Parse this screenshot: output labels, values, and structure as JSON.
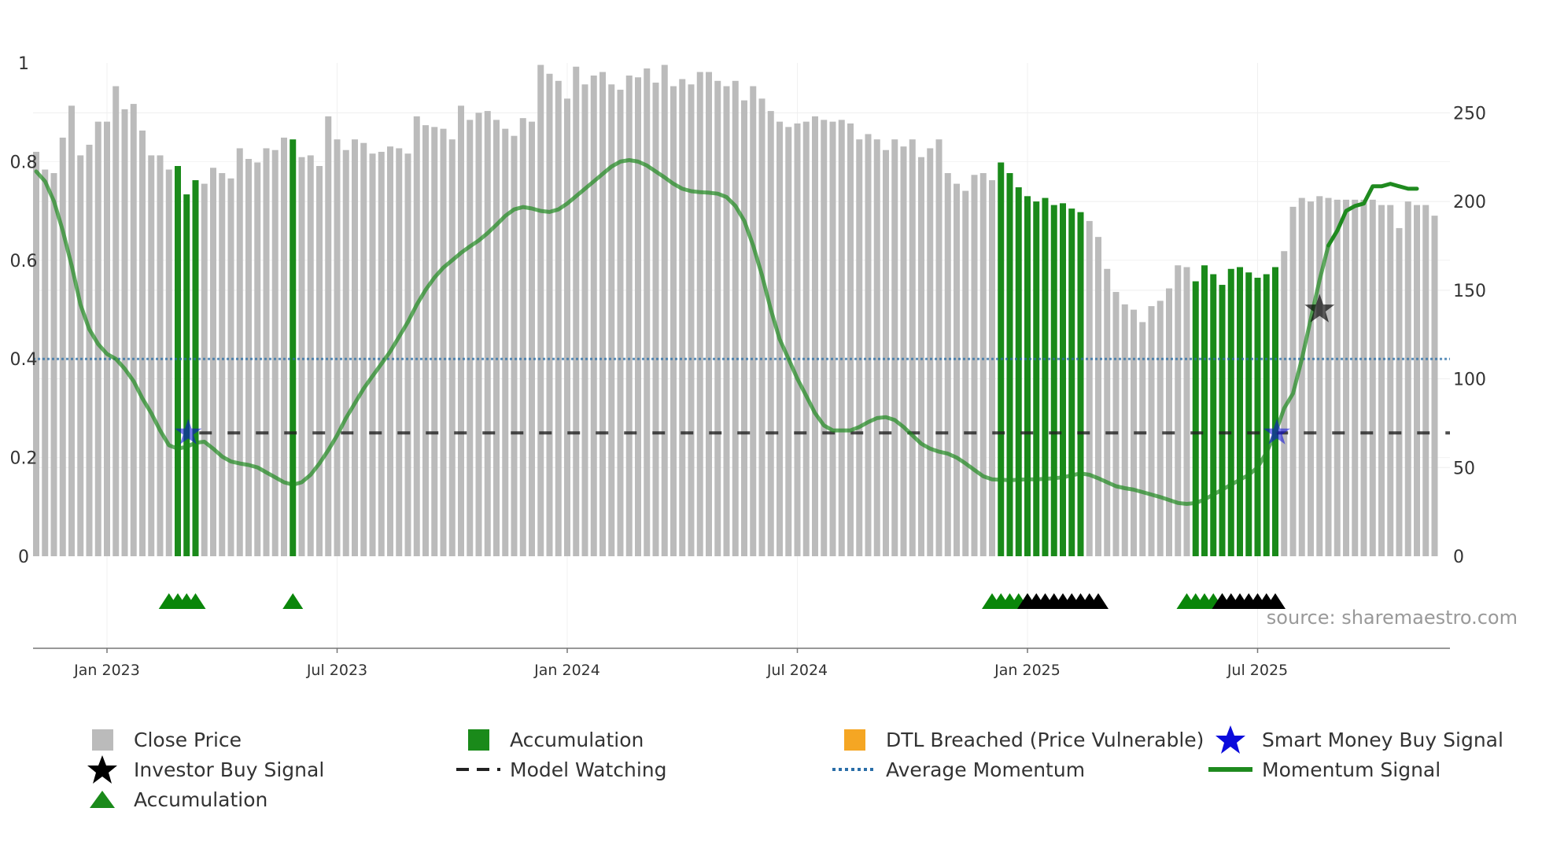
{
  "chart_data": {
    "type": "bar",
    "title": "",
    "source_note": "source: sharemaestro.com",
    "left_axis": {
      "range": [
        0,
        1
      ],
      "ticks": [
        "0",
        "0.2",
        "0.4",
        "0.6",
        "0.8",
        "1"
      ],
      "tick_values": [
        0,
        0.2,
        0.4,
        0.6,
        0.8,
        1
      ]
    },
    "right_axis": {
      "range": [
        0,
        275
      ],
      "ticks": [
        "0",
        "50",
        "100",
        "150",
        "200",
        "250"
      ],
      "tick_values": [
        0,
        50,
        100,
        150,
        200,
        250
      ]
    },
    "x_axis": {
      "ticks": [
        "Jan 2023",
        "Jul 2023",
        "Jan 2024",
        "Jul 2024",
        "Jan 2025",
        "Jul 2025"
      ],
      "tick_weeks": [
        8,
        34,
        60,
        86,
        112,
        138
      ]
    },
    "close_price": {
      "name": "Close Price",
      "color": "#bbbbbb",
      "accumulation_color": "#1a8a1a",
      "values": [
        228,
        218,
        216,
        236,
        254,
        226,
        232,
        245,
        245,
        265,
        252,
        255,
        240,
        226,
        226,
        218,
        220,
        204,
        212,
        210,
        219,
        216,
        213,
        230,
        224,
        222,
        230,
        229,
        236,
        235,
        225,
        226,
        220,
        248,
        235,
        229,
        235,
        233,
        227,
        228,
        231,
        230,
        227,
        248,
        243,
        242,
        241,
        235,
        254,
        246,
        250,
        251,
        246,
        241,
        237,
        247,
        245,
        277,
        272,
        268,
        258,
        276,
        266,
        271,
        273,
        266,
        263,
        271,
        270,
        275,
        267,
        277,
        265,
        269,
        266,
        273,
        273,
        268,
        265,
        268,
        257,
        265,
        258,
        251,
        245,
        242,
        244,
        245,
        248,
        246,
        245,
        246,
        244,
        235,
        238,
        235,
        229,
        235,
        231,
        235,
        225,
        230,
        235,
        216,
        210,
        206,
        215,
        216,
        212,
        222,
        216,
        208,
        203,
        200,
        202,
        198,
        199,
        196,
        194,
        189,
        180,
        162,
        149,
        142,
        139,
        132,
        141,
        144,
        151,
        164,
        163,
        155,
        164,
        159,
        153,
        162,
        163,
        160,
        157,
        159,
        163,
        172,
        197,
        202,
        200,
        203,
        202,
        201,
        201,
        201,
        201,
        201,
        198,
        198,
        185,
        200,
        198,
        198,
        192
      ],
      "accumulation_ranges": [
        [
          16,
          18
        ],
        [
          29,
          29
        ],
        [
          109,
          118
        ],
        [
          131,
          140
        ]
      ]
    },
    "momentum_signal": {
      "name": "Momentum Signal",
      "color": "#1f8a1f",
      "points": [
        [
          0,
          0.78
        ],
        [
          1,
          0.76
        ],
        [
          2,
          0.72
        ],
        [
          3,
          0.66
        ],
        [
          4,
          0.59
        ],
        [
          5,
          0.51
        ],
        [
          6,
          0.46
        ],
        [
          7,
          0.43
        ],
        [
          8,
          0.41
        ],
        [
          9,
          0.4
        ],
        [
          10,
          0.38
        ],
        [
          11,
          0.355
        ],
        [
          12,
          0.32
        ],
        [
          13,
          0.29
        ],
        [
          14,
          0.255
        ],
        [
          15,
          0.225
        ],
        [
          16,
          0.218
        ],
        [
          17,
          0.222
        ],
        [
          18,
          0.23
        ],
        [
          19,
          0.232
        ],
        [
          20,
          0.218
        ],
        [
          21,
          0.202
        ],
        [
          22,
          0.192
        ],
        [
          23,
          0.188
        ],
        [
          24,
          0.185
        ],
        [
          25,
          0.18
        ],
        [
          26,
          0.17
        ],
        [
          27,
          0.16
        ],
        [
          28,
          0.15
        ],
        [
          29,
          0.145
        ],
        [
          30,
          0.15
        ],
        [
          31,
          0.165
        ],
        [
          32,
          0.188
        ],
        [
          33,
          0.215
        ],
        [
          34,
          0.245
        ],
        [
          35,
          0.28
        ],
        [
          36,
          0.31
        ],
        [
          37,
          0.34
        ],
        [
          38,
          0.365
        ],
        [
          39,
          0.39
        ],
        [
          40,
          0.415
        ],
        [
          41,
          0.445
        ],
        [
          42,
          0.475
        ],
        [
          43,
          0.51
        ],
        [
          44,
          0.54
        ],
        [
          45,
          0.565
        ],
        [
          46,
          0.585
        ],
        [
          47,
          0.6
        ],
        [
          48,
          0.615
        ],
        [
          49,
          0.628
        ],
        [
          50,
          0.64
        ],
        [
          51,
          0.655
        ],
        [
          52,
          0.672
        ],
        [
          53,
          0.69
        ],
        [
          54,
          0.703
        ],
        [
          55,
          0.708
        ],
        [
          56,
          0.705
        ],
        [
          57,
          0.7
        ],
        [
          58,
          0.698
        ],
        [
          59,
          0.703
        ],
        [
          60,
          0.715
        ],
        [
          61,
          0.73
        ],
        [
          62,
          0.745
        ],
        [
          63,
          0.76
        ],
        [
          64,
          0.775
        ],
        [
          65,
          0.79
        ],
        [
          66,
          0.8
        ],
        [
          67,
          0.803
        ],
        [
          68,
          0.8
        ],
        [
          69,
          0.792
        ],
        [
          70,
          0.78
        ],
        [
          71,
          0.768
        ],
        [
          72,
          0.755
        ],
        [
          73,
          0.745
        ],
        [
          74,
          0.74
        ],
        [
          75,
          0.738
        ],
        [
          76,
          0.737
        ],
        [
          77,
          0.735
        ],
        [
          78,
          0.728
        ],
        [
          79,
          0.71
        ],
        [
          80,
          0.68
        ],
        [
          81,
          0.63
        ],
        [
          82,
          0.57
        ],
        [
          83,
          0.5
        ],
        [
          84,
          0.44
        ],
        [
          85,
          0.4
        ],
        [
          86,
          0.36
        ],
        [
          87,
          0.325
        ],
        [
          88,
          0.29
        ],
        [
          89,
          0.265
        ],
        [
          90,
          0.255
        ],
        [
          91,
          0.255
        ],
        [
          92,
          0.255
        ],
        [
          93,
          0.262
        ],
        [
          94,
          0.272
        ],
        [
          95,
          0.28
        ],
        [
          96,
          0.282
        ],
        [
          97,
          0.276
        ],
        [
          98,
          0.262
        ],
        [
          99,
          0.245
        ],
        [
          100,
          0.228
        ],
        [
          101,
          0.218
        ],
        [
          102,
          0.212
        ],
        [
          103,
          0.208
        ],
        [
          104,
          0.2
        ],
        [
          105,
          0.188
        ],
        [
          106,
          0.175
        ],
        [
          107,
          0.162
        ],
        [
          108,
          0.156
        ],
        [
          109,
          0.155
        ],
        [
          110,
          0.154
        ],
        [
          111,
          0.155
        ],
        [
          112,
          0.156
        ],
        [
          113,
          0.156
        ],
        [
          114,
          0.157
        ],
        [
          115,
          0.158
        ],
        [
          116,
          0.16
        ],
        [
          117,
          0.164
        ],
        [
          118,
          0.168
        ],
        [
          119,
          0.165
        ],
        [
          120,
          0.158
        ],
        [
          121,
          0.15
        ],
        [
          122,
          0.142
        ],
        [
          123,
          0.138
        ],
        [
          124,
          0.135
        ],
        [
          125,
          0.13
        ],
        [
          126,
          0.125
        ],
        [
          127,
          0.12
        ],
        [
          128,
          0.114
        ],
        [
          129,
          0.108
        ],
        [
          130,
          0.106
        ],
        [
          131,
          0.108
        ],
        [
          132,
          0.115
        ],
        [
          133,
          0.125
        ],
        [
          134,
          0.135
        ],
        [
          135,
          0.145
        ],
        [
          136,
          0.155
        ],
        [
          137,
          0.165
        ],
        [
          138,
          0.18
        ],
        [
          139,
          0.21
        ],
        [
          140,
          0.25
        ],
        [
          141,
          0.3
        ],
        [
          142,
          0.33
        ],
        [
          143,
          0.4
        ],
        [
          144,
          0.48
        ],
        [
          145,
          0.56
        ],
        [
          146,
          0.63
        ],
        [
          147,
          0.66
        ],
        [
          148,
          0.7
        ],
        [
          149,
          0.71
        ],
        [
          150,
          0.715
        ],
        [
          151,
          0.75
        ],
        [
          152,
          0.75
        ],
        [
          153,
          0.755
        ],
        [
          154,
          0.75
        ],
        [
          155,
          0.745
        ],
        [
          156,
          0.745
        ]
      ]
    },
    "average_momentum": {
      "name": "Average Momentum",
      "value": 0.4,
      "color": "#2a6ea8"
    },
    "model_watching": {
      "name": "Model Watching",
      "value": 0.25,
      "start_week": 17,
      "color": "#222222"
    },
    "smart_money_buy_signal": {
      "name": "Smart Money Buy Signal",
      "weeks": [
        17,
        140
      ],
      "value": 0.25,
      "color": "#0b0bdc"
    },
    "investor_buy_signal": {
      "name": "Investor Buy Signal",
      "weeks": [
        145
      ],
      "value": 0.5,
      "color": "#000000"
    },
    "accumulation_markers": {
      "name": "Accumulation",
      "green_weeks": [
        15,
        16,
        17,
        18,
        29,
        108,
        109,
        110,
        111,
        112,
        130,
        131,
        132,
        133,
        134
      ],
      "black_weeks": [
        112,
        113,
        114,
        115,
        116,
        117,
        118,
        119,
        120,
        134,
        135,
        136,
        137,
        138,
        139,
        140
      ]
    },
    "dtl_breached": {
      "name": "DTL Breached (Price Vulnerable)",
      "color": "#f5a623",
      "weeks": []
    }
  },
  "legend": {
    "close_price": "Close Price",
    "accumulation_bar": "Accumulation",
    "dtl_breached": "DTL Breached (Price Vulnerable)",
    "smart_money": "Smart Money Buy Signal",
    "investor_buy": "Investor Buy Signal",
    "model_watching": "Model Watching",
    "average_momentum": "Average Momentum",
    "momentum_signal": "Momentum Signal",
    "accumulation_marker": "Accumulation"
  }
}
